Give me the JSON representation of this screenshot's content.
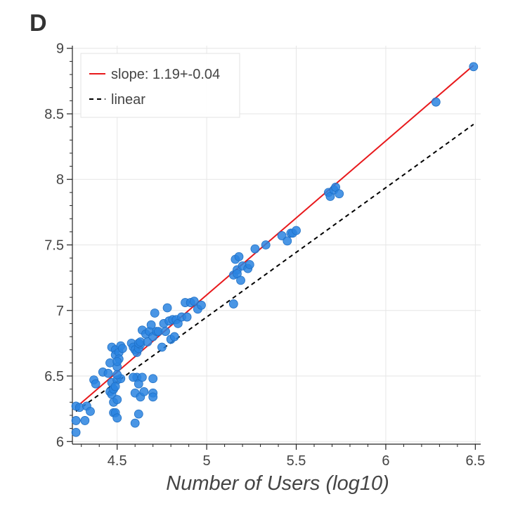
{
  "panel_letter": "D",
  "chart_data": {
    "type": "scatter",
    "title": "",
    "xlabel": "Number of Users (log10)",
    "ylabel": "",
    "xlim": [
      4.25,
      6.53
    ],
    "ylim": [
      5.98,
      9.02
    ],
    "grid": true,
    "legend_position": "top-left",
    "x_ticks": [
      {
        "value": 4.5,
        "label": "4.5"
      },
      {
        "value": 5,
        "label": "5"
      },
      {
        "value": 5.5,
        "label": "5.5"
      },
      {
        "value": 6,
        "label": "6"
      },
      {
        "value": 6.5,
        "label": "6.5"
      }
    ],
    "y_ticks": [
      {
        "value": 6.0,
        "label": "6"
      },
      {
        "value": 6.5,
        "label": "6.5"
      },
      {
        "value": 7.0,
        "label": "7"
      },
      {
        "value": 7.5,
        "label": "7.5"
      },
      {
        "value": 8.0,
        "label": "8"
      },
      {
        "value": 8.5,
        "label": "8.5"
      },
      {
        "value": 9.0,
        "label": "9"
      }
    ],
    "lines": [
      {
        "name": "slope: 1.19+-0.04",
        "color": "#e8191c",
        "style": "solid",
        "x": [
          4.27,
          6.49
        ],
        "y": [
          6.26,
          8.87
        ]
      },
      {
        "name": "linear",
        "color": "#000000",
        "style": "dashed",
        "x": [
          4.27,
          6.49
        ],
        "y": [
          6.23,
          8.42
        ]
      }
    ],
    "points": {
      "name": "data",
      "color": "#2a84e0",
      "x": [
        4.27,
        4.29,
        4.32,
        4.27,
        4.33,
        4.27,
        4.35,
        4.37,
        4.38,
        4.42,
        4.45,
        4.46,
        4.47,
        4.47,
        4.48,
        4.48,
        4.49,
        4.49,
        4.5,
        4.5,
        4.51,
        4.51,
        4.52,
        4.52,
        4.53,
        4.46,
        4.47,
        4.48,
        4.49,
        4.5,
        4.5,
        4.48,
        4.49,
        4.5,
        4.5,
        4.58,
        4.59,
        4.6,
        4.61,
        4.62,
        4.63,
        4.62,
        4.63,
        4.64,
        4.66,
        4.67,
        4.68,
        4.69,
        4.7,
        4.71,
        4.72,
        4.73,
        4.75,
        4.76,
        4.77,
        4.78,
        4.79,
        4.8,
        4.81,
        4.82,
        4.83,
        4.84,
        4.86,
        4.88,
        4.89,
        4.91,
        4.93,
        4.95,
        4.97,
        4.6,
        4.6,
        4.61,
        4.62,
        4.62,
        4.63,
        4.64,
        4.65,
        4.7,
        4.7,
        4.7,
        4.59,
        5.15,
        5.15,
        5.16,
        5.17,
        5.17,
        5.18,
        5.19,
        5.2,
        5.23,
        5.24,
        5.27,
        5.33,
        5.42,
        5.45,
        5.47,
        5.48,
        5.5,
        5.68,
        5.69,
        5.71,
        5.72,
        5.74,
        6.28,
        6.49
      ],
      "y": [
        6.27,
        6.26,
        6.16,
        6.16,
        6.27,
        6.07,
        6.23,
        6.47,
        6.44,
        6.53,
        6.52,
        6.6,
        6.72,
        6.45,
        6.4,
        6.22,
        6.7,
        6.66,
        6.57,
        6.47,
        6.68,
        6.63,
        6.73,
        6.48,
        6.71,
        6.38,
        6.36,
        6.3,
        6.22,
        6.18,
        6.32,
        6.4,
        6.42,
        6.51,
        6.61,
        6.75,
        6.72,
        6.7,
        6.68,
        6.71,
        6.74,
        6.75,
        6.76,
        6.85,
        6.82,
        6.76,
        6.84,
        6.89,
        6.8,
        6.98,
        6.84,
        6.84,
        6.72,
        6.9,
        6.84,
        7.02,
        6.92,
        6.78,
        6.93,
        6.8,
        6.93,
        6.9,
        6.95,
        7.06,
        6.95,
        7.06,
        7.07,
        7.01,
        7.04,
        6.14,
        6.37,
        6.49,
        6.44,
        6.21,
        6.34,
        6.49,
        6.38,
        6.48,
        6.37,
        6.34,
        6.49,
        7.27,
        7.05,
        7.39,
        7.31,
        7.28,
        7.41,
        7.23,
        7.34,
        7.32,
        7.35,
        7.47,
        7.5,
        7.57,
        7.53,
        7.59,
        7.59,
        7.61,
        7.9,
        7.87,
        7.92,
        7.94,
        7.89,
        8.59,
        8.86
      ]
    },
    "legend": [
      {
        "label": "slope: 1.19+-0.04",
        "style": "solid",
        "color": "#e8191c"
      },
      {
        "label": "linear",
        "style": "dashed",
        "color": "#000000"
      }
    ]
  }
}
